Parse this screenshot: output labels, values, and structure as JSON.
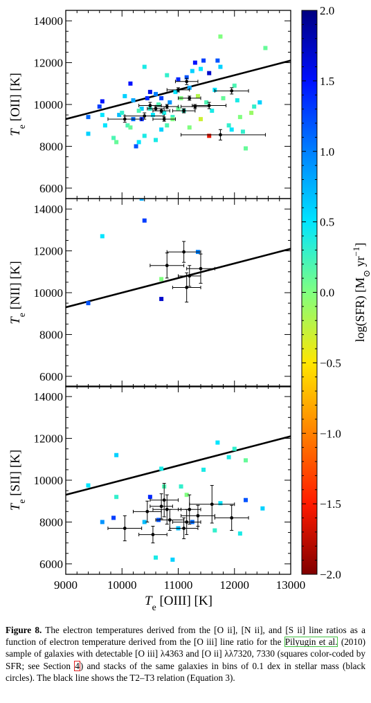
{
  "chart_data": {
    "type": "scatter",
    "xlabel": "T_e [OIII] [K]",
    "xlim": [
      9000,
      13000
    ],
    "x_ticks": [
      "9000",
      "10000",
      "11000",
      "12000",
      "13000"
    ],
    "colorbar": {
      "label": "log(SFR) [M_⊙ yr^-1]",
      "range": [
        -2.0,
        2.0
      ],
      "ticks": [
        "2.0",
        "1.5",
        "1.0",
        "0.5",
        "0.0",
        "−0.5",
        "−1.0",
        "−1.5",
        "−2.0"
      ]
    },
    "relation_line": {
      "name": "T2–T3 relation",
      "x": [
        9000,
        13000
      ],
      "y": [
        9300,
        12100
      ]
    },
    "panels": [
      {
        "ylabel": "T_e [OII] [K]",
        "ylim": [
          5500,
          14500
        ],
        "y_ticks": [
          "6000",
          "8000",
          "10000",
          "12000",
          "14000"
        ],
        "squares": [
          {
            "x": 9400,
            "y": 9400,
            "c": 1.1
          },
          {
            "x": 9400,
            "y": 8600,
            "c": 0.6
          },
          {
            "x": 9600,
            "y": 9900,
            "c": 1.3
          },
          {
            "x": 9650,
            "y": 10150,
            "c": 1.5
          },
          {
            "x": 9650,
            "y": 9500,
            "c": 0.5
          },
          {
            "x": 9700,
            "y": 9000,
            "c": 0.5
          },
          {
            "x": 9850,
            "y": 8400,
            "c": 0.2
          },
          {
            "x": 9900,
            "y": 8200,
            "c": 0.1
          },
          {
            "x": 9950,
            "y": 9500,
            "c": 0.7
          },
          {
            "x": 10000,
            "y": 9600,
            "c": 0.3
          },
          {
            "x": 10050,
            "y": 10400,
            "c": 0.6
          },
          {
            "x": 10100,
            "y": 9000,
            "c": 0.2
          },
          {
            "x": 10150,
            "y": 8900,
            "c": 0.1
          },
          {
            "x": 10150,
            "y": 11000,
            "c": 1.5
          },
          {
            "x": 10200,
            "y": 9300,
            "c": 1.1
          },
          {
            "x": 10200,
            "y": 10200,
            "c": 0.8
          },
          {
            "x": 10250,
            "y": 8000,
            "c": 1.2
          },
          {
            "x": 10300,
            "y": 8200,
            "c": 0.5
          },
          {
            "x": 10350,
            "y": 9300,
            "c": 1.4
          },
          {
            "x": 10350,
            "y": 9800,
            "c": 0.6
          },
          {
            "x": 10400,
            "y": 11800,
            "c": 0.4
          },
          {
            "x": 10400,
            "y": 8500,
            "c": 0.4
          },
          {
            "x": 10450,
            "y": 10300,
            "c": 1.4
          },
          {
            "x": 10500,
            "y": 10600,
            "c": 1.6
          },
          {
            "x": 10500,
            "y": 9800,
            "c": 0.3
          },
          {
            "x": 10550,
            "y": 9500,
            "c": 0.5
          },
          {
            "x": 10600,
            "y": 8300,
            "c": 0.4
          },
          {
            "x": 10600,
            "y": 10500,
            "c": 1.0
          },
          {
            "x": 10650,
            "y": 10000,
            "c": 0.2
          },
          {
            "x": 10700,
            "y": 8800,
            "c": 0.6
          },
          {
            "x": 10700,
            "y": 10300,
            "c": 1.3
          },
          {
            "x": 10750,
            "y": 9600,
            "c": 0.4
          },
          {
            "x": 10800,
            "y": 11400,
            "c": 0.3
          },
          {
            "x": 10800,
            "y": 9000,
            "c": 0.2
          },
          {
            "x": 10850,
            "y": 10100,
            "c": 0.9
          },
          {
            "x": 10900,
            "y": 9400,
            "c": 0.3
          },
          {
            "x": 10950,
            "y": 10600,
            "c": 0.5
          },
          {
            "x": 11000,
            "y": 11200,
            "c": 1.4
          },
          {
            "x": 11000,
            "y": 9800,
            "c": 0.1
          },
          {
            "x": 11050,
            "y": 10300,
            "c": 0.0
          },
          {
            "x": 11100,
            "y": 9700,
            "c": 0.3
          },
          {
            "x": 11150,
            "y": 11300,
            "c": 1.2
          },
          {
            "x": 11200,
            "y": 8900,
            "c": 0.0
          },
          {
            "x": 11200,
            "y": 10800,
            "c": 0.8
          },
          {
            "x": 11250,
            "y": 11600,
            "c": 0.6
          },
          {
            "x": 11300,
            "y": 12000,
            "c": 1.5
          },
          {
            "x": 11350,
            "y": 10400,
            "c": -0.2
          },
          {
            "x": 11400,
            "y": 9300,
            "c": -0.3
          },
          {
            "x": 11400,
            "y": 11700,
            "c": 0.5
          },
          {
            "x": 11450,
            "y": 12100,
            "c": 1.3
          },
          {
            "x": 11500,
            "y": 10100,
            "c": 0.2
          },
          {
            "x": 11550,
            "y": 11500,
            "c": 1.7
          },
          {
            "x": 11600,
            "y": 9700,
            "c": 0.4
          },
          {
            "x": 11650,
            "y": 10700,
            "c": 0.5
          },
          {
            "x": 11700,
            "y": 12100,
            "c": 1.2
          },
          {
            "x": 11750,
            "y": 11800,
            "c": 0.6
          },
          {
            "x": 11750,
            "y": 13250,
            "c": 0.0
          },
          {
            "x": 11800,
            "y": 10300,
            "c": 0.1
          },
          {
            "x": 11900,
            "y": 9000,
            "c": 0.3
          },
          {
            "x": 11950,
            "y": 8800,
            "c": 0.5
          },
          {
            "x": 12000,
            "y": 10900,
            "c": 0.2
          },
          {
            "x": 12050,
            "y": 10200,
            "c": 0.4
          },
          {
            "x": 12100,
            "y": 9400,
            "c": 0.0
          },
          {
            "x": 12150,
            "y": 8700,
            "c": 0.3
          },
          {
            "x": 12200,
            "y": 7900,
            "c": 0.1
          },
          {
            "x": 12300,
            "y": 9600,
            "c": -0.1
          },
          {
            "x": 12350,
            "y": 9900,
            "c": 0.3
          },
          {
            "x": 12450,
            "y": 10100,
            "c": 0.6
          },
          {
            "x": 12550,
            "y": 12700,
            "c": 0.1
          },
          {
            "x": 11550,
            "y": 8500,
            "c": -1.6
          },
          {
            "x": 10900,
            "y": 9300,
            "c": 0.0
          },
          {
            "x": 10300,
            "y": 9700,
            "c": 0.2
          }
        ],
        "stacks": [
          {
            "x": 10050,
            "y": 9300,
            "xerr": [
              300,
              300
            ],
            "yerr": [
              150,
              150
            ]
          },
          {
            "x": 10400,
            "y": 9450,
            "xerr": [
              350,
              350
            ],
            "yerr": [
              150,
              150
            ]
          },
          {
            "x": 10500,
            "y": 9950,
            "xerr": [
              200,
              200
            ],
            "yerr": [
              150,
              150
            ]
          },
          {
            "x": 10600,
            "y": 9800,
            "xerr": [
              150,
              150
            ],
            "yerr": [
              100,
              100
            ]
          },
          {
            "x": 10700,
            "y": 9700,
            "xerr": [
              150,
              150
            ],
            "yerr": [
              100,
              100
            ]
          },
          {
            "x": 10750,
            "y": 9300,
            "xerr": [
              200,
              200
            ],
            "yerr": [
              100,
              100
            ]
          },
          {
            "x": 10800,
            "y": 9900,
            "xerr": [
              200,
              200
            ],
            "yerr": [
              100,
              100
            ]
          },
          {
            "x": 11000,
            "y": 10700,
            "xerr": [
              200,
              200
            ],
            "yerr": [
              100,
              100
            ]
          },
          {
            "x": 11100,
            "y": 9700,
            "xerr": [
              200,
              200
            ],
            "yerr": [
              100,
              100
            ]
          },
          {
            "x": 11150,
            "y": 11100,
            "xerr": [
              200,
              200
            ],
            "yerr": [
              150,
              150
            ]
          },
          {
            "x": 11200,
            "y": 10300,
            "xerr": [
              200,
              200
            ],
            "yerr": [
              100,
              100
            ]
          },
          {
            "x": 11300,
            "y": 9900,
            "xerr": [
              250,
              250
            ],
            "yerr": [
              100,
              100
            ]
          },
          {
            "x": 11550,
            "y": 9950,
            "xerr": [
              300,
              300
            ],
            "yerr": [
              150,
              150
            ]
          },
          {
            "x": 11950,
            "y": 10650,
            "xerr": [
              300,
              300
            ],
            "yerr": [
              150,
              150
            ]
          },
          {
            "x": 11750,
            "y": 8550,
            "xerr": [
              700,
              800
            ],
            "yerr": [
              250,
              250
            ]
          }
        ]
      },
      {
        "ylabel": "T_e [NII] [K]",
        "ylim": [
          5500,
          14500
        ],
        "y_ticks": [
          "6000",
          "8000",
          "10000",
          "12000",
          "14000"
        ],
        "squares": [
          {
            "x": 9400,
            "y": 9500,
            "c": 1.2
          },
          {
            "x": 9650,
            "y": 12700,
            "c": 0.5
          },
          {
            "x": 10350,
            "y": 14500,
            "c": 0.8
          },
          {
            "x": 10400,
            "y": 13450,
            "c": 1.3
          },
          {
            "x": 10700,
            "y": 10650,
            "c": 0.0
          },
          {
            "x": 10700,
            "y": 9700,
            "c": 1.7
          },
          {
            "x": 11350,
            "y": 11950,
            "c": 1.0
          }
        ],
        "stacks": [
          {
            "x": 10800,
            "y": 11300,
            "xerr": [
              300,
              300
            ],
            "yerr": [
              600,
              600
            ]
          },
          {
            "x": 11100,
            "y": 11950,
            "xerr": [
              300,
              300
            ],
            "yerr": [
              500,
              500
            ]
          },
          {
            "x": 11150,
            "y": 10250,
            "xerr": [
              250,
              250
            ],
            "yerr": [
              700,
              700
            ]
          },
          {
            "x": 11200,
            "y": 10800,
            "xerr": [
              200,
              200
            ],
            "yerr": [
              500,
              500
            ]
          },
          {
            "x": 11400,
            "y": 11150,
            "xerr": [
              250,
              250
            ],
            "yerr": [
              700,
              700
            ]
          }
        ]
      },
      {
        "ylabel": "T_e [SII] [K]",
        "ylim": [
          5500,
          14500
        ],
        "y_ticks": [
          "6000",
          "8000",
          "10000",
          "12000",
          "14000"
        ],
        "squares": [
          {
            "x": 9400,
            "y": 9750,
            "c": 0.5
          },
          {
            "x": 9650,
            "y": 8000,
            "c": 0.9
          },
          {
            "x": 9850,
            "y": 8200,
            "c": 1.3
          },
          {
            "x": 9900,
            "y": 11200,
            "c": 0.6
          },
          {
            "x": 9900,
            "y": 9200,
            "c": 0.3
          },
          {
            "x": 10400,
            "y": 8000,
            "c": 0.7
          },
          {
            "x": 10500,
            "y": 9200,
            "c": 1.4
          },
          {
            "x": 10600,
            "y": 6300,
            "c": 0.4
          },
          {
            "x": 10650,
            "y": 8100,
            "c": 1.2
          },
          {
            "x": 10700,
            "y": 10550,
            "c": 0.4
          },
          {
            "x": 10750,
            "y": 9700,
            "c": 0.2
          },
          {
            "x": 10900,
            "y": 6200,
            "c": 0.6
          },
          {
            "x": 11000,
            "y": 7700,
            "c": 0.7
          },
          {
            "x": 11050,
            "y": 9700,
            "c": 0.3
          },
          {
            "x": 11150,
            "y": 9300,
            "c": 0.0
          },
          {
            "x": 11250,
            "y": 8000,
            "c": 1.1
          },
          {
            "x": 11450,
            "y": 10500,
            "c": 0.4
          },
          {
            "x": 11650,
            "y": 7600,
            "c": 0.3
          },
          {
            "x": 11700,
            "y": 11800,
            "c": 0.5
          },
          {
            "x": 11750,
            "y": 8900,
            "c": 0.5
          },
          {
            "x": 11900,
            "y": 11100,
            "c": 0.4
          },
          {
            "x": 12000,
            "y": 11500,
            "c": 0.3
          },
          {
            "x": 12100,
            "y": 7450,
            "c": 0.4
          },
          {
            "x": 12200,
            "y": 9050,
            "c": 1.2
          },
          {
            "x": 12200,
            "y": 10950,
            "c": 0.1
          },
          {
            "x": 12500,
            "y": 8650,
            "c": 0.6
          }
        ],
        "stacks": [
          {
            "x": 10050,
            "y": 7700,
            "xerr": [
              300,
              300
            ],
            "yerr": [
              600,
              600
            ]
          },
          {
            "x": 10450,
            "y": 8500,
            "xerr": [
              250,
              250
            ],
            "yerr": [
              500,
              500
            ]
          },
          {
            "x": 10550,
            "y": 7400,
            "xerr": [
              250,
              250
            ],
            "yerr": [
              400,
              400
            ]
          },
          {
            "x": 10700,
            "y": 8750,
            "xerr": [
              200,
              200
            ],
            "yerr": [
              600,
              600
            ]
          },
          {
            "x": 10750,
            "y": 9050,
            "xerr": [
              250,
              250
            ],
            "yerr": [
              800,
              800
            ]
          },
          {
            "x": 10800,
            "y": 8600,
            "xerr": [
              250,
              250
            ],
            "yerr": [
              700,
              700
            ]
          },
          {
            "x": 10850,
            "y": 8100,
            "xerr": [
              250,
              250
            ],
            "yerr": [
              500,
              500
            ]
          },
          {
            "x": 11100,
            "y": 7700,
            "xerr": [
              250,
              250
            ],
            "yerr": [
              500,
              500
            ]
          },
          {
            "x": 11150,
            "y": 8000,
            "xerr": [
              250,
              250
            ],
            "yerr": [
              600,
              600
            ]
          },
          {
            "x": 11200,
            "y": 8600,
            "xerr": [
              200,
              200
            ],
            "yerr": [
              700,
              700
            ]
          },
          {
            "x": 11350,
            "y": 8300,
            "xerr": [
              300,
              300
            ],
            "yerr": [
              500,
              500
            ]
          },
          {
            "x": 11600,
            "y": 8850,
            "xerr": [
              400,
              400
            ],
            "yerr": [
              900,
              900
            ]
          },
          {
            "x": 11950,
            "y": 8200,
            "xerr": [
              300,
              300
            ],
            "yerr": [
              600,
              600
            ]
          }
        ]
      }
    ]
  },
  "caption": {
    "label": "Figure 8.",
    "part1": " The electron temperatures derived from the [O ii], [N ii], and [S ii] line ratios as a function of electron temperature derived from the [O iii] line ratio for the ",
    "ref_text": "Pilyugin et al.",
    "part2": " (2010) sample of galaxies with detectable [O iii] λ4363 and [O ii] λλ7320, 7330 (squares color-coded by SFR; see Section ",
    "sec_ref": "4",
    "part3": ") and stacks of the same galaxies in bins of 0.1 dex in stellar mass (black circles). The black line shows the T2–T3 relation (Equation 3)."
  }
}
